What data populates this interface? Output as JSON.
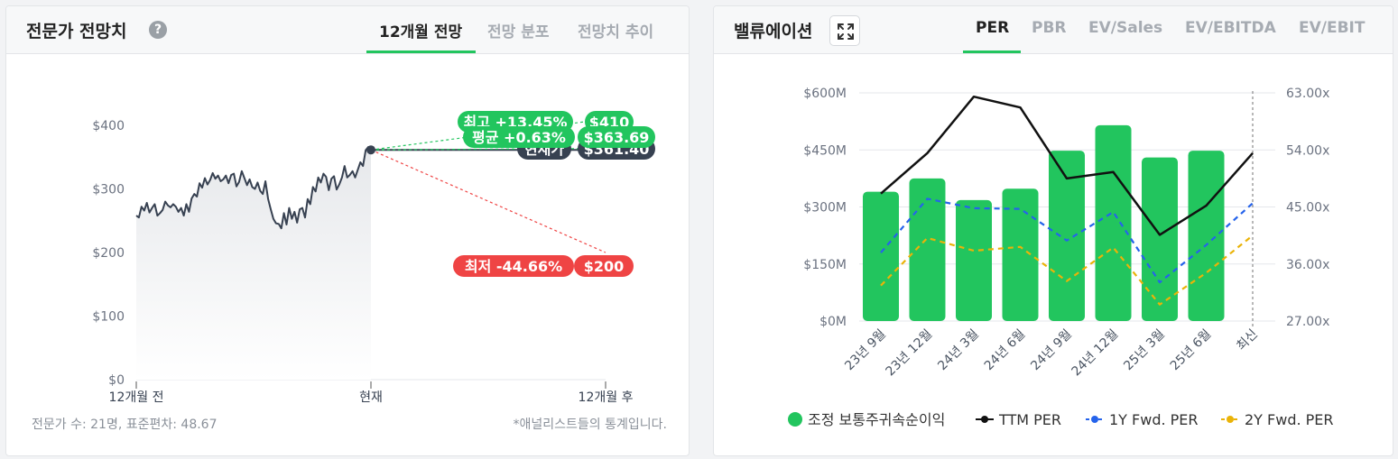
{
  "left_card": {
    "title": "전문가 전망치",
    "help": "?",
    "tabs": [
      {
        "label": "12개월 전망",
        "active": true
      },
      {
        "label": "전망 분포",
        "active": false
      },
      {
        "label": "전망치 추이",
        "active": false
      }
    ],
    "footer_left": "전문가 수: 21명, 표준편차: 48.67",
    "footer_right": "*애널리스트들의 통계입니다."
  },
  "right_card": {
    "title": "밸류에이션",
    "tabs": [
      {
        "label": "PER",
        "active": true
      },
      {
        "label": "PBR",
        "active": false
      },
      {
        "label": "EV/Sales",
        "active": false
      },
      {
        "label": "EV/EBITDA",
        "active": false
      },
      {
        "label": "EV/EBIT",
        "active": false
      }
    ]
  },
  "chart_data": [
    {
      "type": "line",
      "ylim": [
        0,
        400
      ],
      "yticks": [
        "$400",
        "$300",
        "$200",
        "$100",
        "$0"
      ],
      "ytick_values": [
        400,
        300,
        200,
        100,
        0
      ],
      "xticks": [
        "12개월 전",
        "현재",
        "12개월 후"
      ],
      "history": [
        258,
        255,
        272,
        266,
        278,
        263,
        270,
        276,
        258,
        262,
        267,
        280,
        274,
        271,
        276,
        272,
        264,
        270,
        258,
        276,
        264,
        285,
        292,
        288,
        309,
        302,
        317,
        307,
        314,
        325,
        316,
        321,
        312,
        315,
        321,
        309,
        322,
        324,
        304,
        311,
        328,
        317,
        306,
        315,
        303,
        300,
        310,
        297,
        292,
        312,
        284,
        268,
        253,
        246,
        245,
        238,
        262,
        244,
        270,
        253,
        264,
        247,
        268,
        270,
        255,
        284,
        276,
        303,
        296,
        318,
        310,
        324,
        319,
        298,
        316,
        320,
        299,
        307,
        318,
        336,
        318,
        322,
        328,
        318,
        330,
        342,
        336,
        361,
        366,
        361
      ],
      "current": {
        "label": "현재가",
        "value": "$361.40",
        "y": 361.4
      },
      "high": {
        "label": "최고 +13.45%",
        "value": "$410",
        "y": 410
      },
      "avg": {
        "label": "평균 +0.63%",
        "value": "$363.69",
        "y": 363.69
      },
      "low": {
        "label": "최저 -44.66%",
        "value": "$200",
        "y": 200
      },
      "colors": {
        "high": "#22c55e",
        "avg": "#22c55e",
        "low": "#ef4444",
        "current": "#374151",
        "line": "#374151"
      }
    },
    {
      "type": "bar",
      "categories": [
        "23년 9월",
        "23년 12월",
        "24년 3월",
        "24년 6월",
        "24년 9월",
        "24년 12월",
        "25년 3월",
        "25년 6월",
        "최신"
      ],
      "y_left": {
        "ticks": [
          "$600M",
          "$450M",
          "$300M",
          "$150M",
          "$0M"
        ],
        "values": [
          600,
          450,
          300,
          150,
          0
        ],
        "lim": [
          0,
          600
        ]
      },
      "y_right": {
        "ticks": [
          "63.00x",
          "54.00x",
          "45.00x",
          "36.00x",
          "27.00x"
        ],
        "values": [
          63,
          54,
          45,
          36,
          27
        ],
        "lim": [
          27,
          63
        ]
      },
      "series": [
        {
          "name": "조정 보통주귀속순이익",
          "kind": "bar",
          "axis": "left",
          "color": "#22c55e",
          "values": [
            340,
            375,
            318,
            348,
            448,
            515,
            430,
            448,
            null
          ]
        },
        {
          "name": "TTM PER",
          "kind": "line",
          "axis": "right",
          "color": "#111111",
          "values": [
            47.1,
            53.5,
            62.4,
            60.7,
            49.5,
            50.5,
            40.6,
            45.2,
            53.5
          ]
        },
        {
          "name": "1Y Fwd. PER",
          "kind": "dashed",
          "axis": "right",
          "color": "#2563eb",
          "values": [
            37.8,
            46.3,
            44.8,
            44.7,
            39.7,
            44.2,
            33.1,
            39.0,
            45.6
          ]
        },
        {
          "name": "2Y Fwd. PER",
          "kind": "dashed",
          "axis": "right",
          "color": "#eab308",
          "values": [
            32.6,
            40.1,
            38.1,
            38.7,
            33.3,
            38.6,
            29.6,
            34.6,
            40.5
          ]
        }
      ]
    }
  ]
}
